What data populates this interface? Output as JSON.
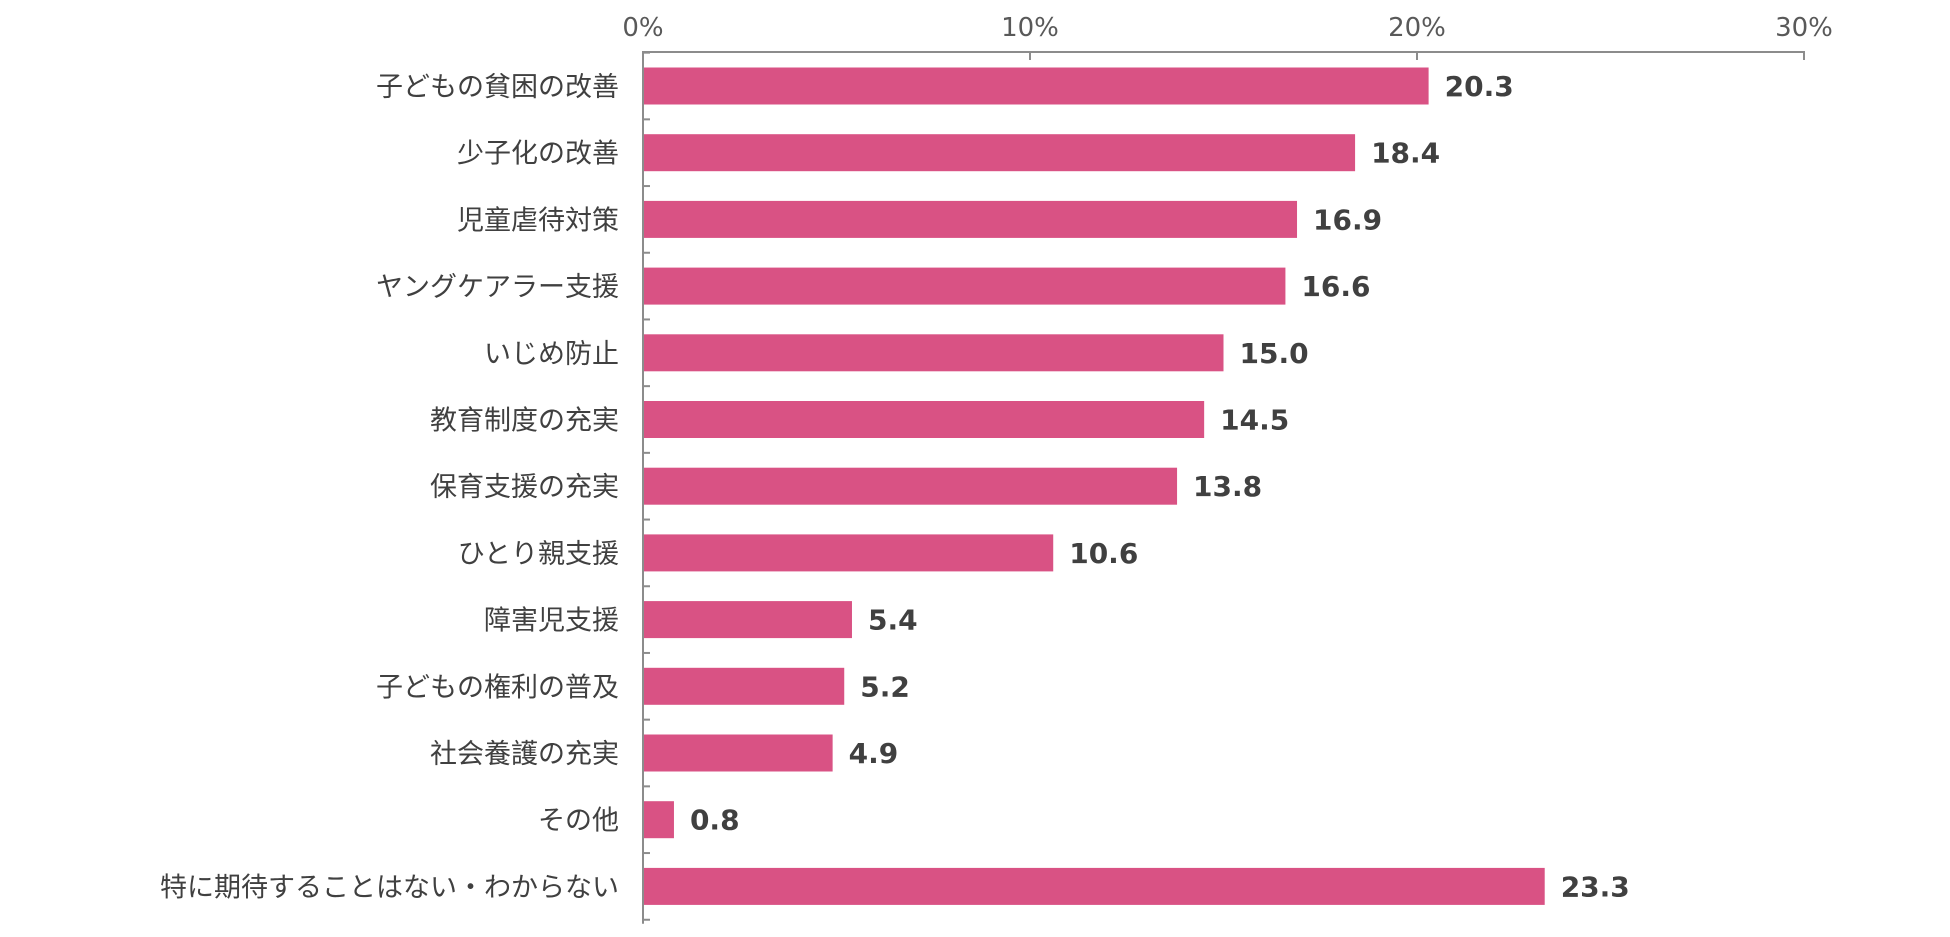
{
  "chart_data": {
    "type": "bar",
    "orientation": "horizontal",
    "title": "",
    "xlabel": "",
    "ylabel": "",
    "xlim": [
      0,
      30
    ],
    "x_ticks": [
      "0%",
      "10%",
      "20%",
      "30%"
    ],
    "x_tick_values": [
      0,
      10,
      20,
      30
    ],
    "axis_position": "top",
    "grid": false,
    "legend": "none",
    "bar_color": "#D95284",
    "axis_color": "#8C8C8C",
    "categories": [
      "子どもの貧困の改善",
      "少子化の改善",
      "児童虐待対策",
      "ヤングケアラー支援",
      "いじめ防止",
      "教育制度の充実",
      "保育支援の充実",
      "ひとり親支援",
      "障害児支援",
      "子どもの権利の普及",
      "社会養護の充実",
      "その他",
      "特に期待することはない・わからない"
    ],
    "values": [
      20.3,
      18.4,
      16.9,
      16.6,
      15.0,
      14.5,
      13.8,
      10.6,
      5.4,
      5.2,
      4.9,
      0.8,
      23.3
    ],
    "value_labels": [
      "20.3",
      "18.4",
      "16.9",
      "16.6",
      "15.0",
      "14.5",
      "13.8",
      "10.6",
      "5.4",
      "5.2",
      "4.9",
      "0.8",
      "23.3"
    ]
  }
}
